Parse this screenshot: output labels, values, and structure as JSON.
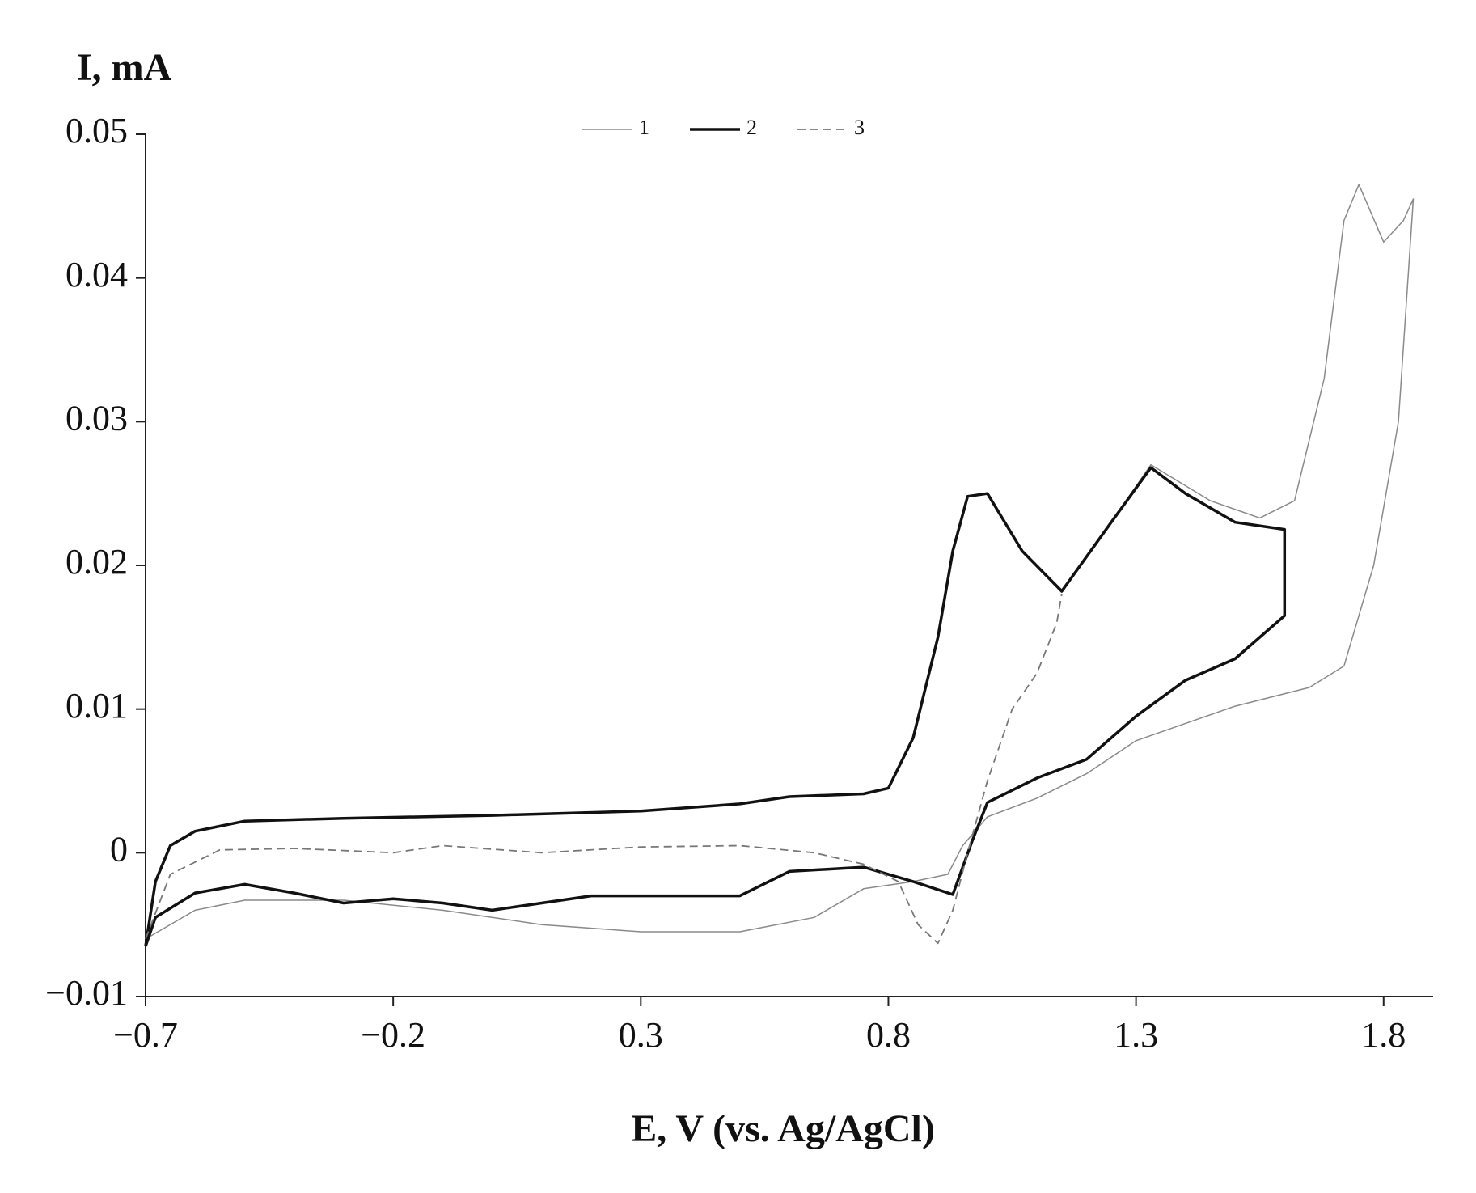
{
  "chart_data": {
    "type": "line",
    "y_label": "I, mA",
    "x_label": "E, V (vs. Ag/AgCl)",
    "xlim": [
      -0.7,
      1.9
    ],
    "ylim": [
      -0.01,
      0.05
    ],
    "xticks": [
      {
        "value": -0.7,
        "label": "−0.7"
      },
      {
        "value": -0.2,
        "label": "−0.2"
      },
      0.3,
      0.8,
      1.3,
      1.8
    ],
    "yticks": [
      {
        "value": -0.01,
        "label": "−0.01"
      },
      0,
      0.01,
      0.02,
      0.03,
      0.04,
      0.05
    ],
    "grid": false,
    "legend": "top",
    "series": [
      {
        "name": "1",
        "color": "#8a8a8a",
        "width": 1.5,
        "style": "solid",
        "x": [
          -0.7,
          -0.68,
          -0.65,
          -0.6,
          -0.5,
          -0.3,
          0,
          0.3,
          0.5,
          0.6,
          0.75,
          0.8,
          0.85,
          0.9,
          0.93,
          0.96,
          1.0,
          1.07,
          1.15,
          1.25,
          1.33,
          1.45,
          1.55,
          1.62,
          1.68,
          1.72,
          1.75,
          1.8,
          1.84,
          1.86,
          1.83,
          1.78,
          1.72,
          1.65,
          1.5,
          1.4,
          1.3,
          1.2,
          1.1,
          1.0,
          0.95,
          0.92,
          0.85,
          0.75,
          0.65,
          0.5,
          0.3,
          0.1,
          -0.1,
          -0.3,
          -0.5,
          -0.6,
          -0.7
        ],
        "values": [
          -0.0065,
          -0.002,
          0.0005,
          0.0015,
          0.0022,
          0.0024,
          0.0026,
          0.0029,
          0.0034,
          0.0039,
          0.0041,
          0.0045,
          0.008,
          0.015,
          0.021,
          0.0248,
          0.025,
          0.021,
          0.0183,
          0.023,
          0.027,
          0.0245,
          0.0233,
          0.0245,
          0.033,
          0.044,
          0.0465,
          0.0425,
          0.044,
          0.0455,
          0.03,
          0.02,
          0.013,
          0.0115,
          0.0102,
          0.009,
          0.0078,
          0.0055,
          0.0038,
          0.0025,
          0.0005,
          -0.0015,
          -0.002,
          -0.0025,
          -0.0045,
          -0.0055,
          -0.0055,
          -0.005,
          -0.004,
          -0.0033,
          -0.0033,
          -0.004,
          -0.006
        ]
      },
      {
        "name": "2",
        "color": "#111111",
        "width": 3.5,
        "style": "solid",
        "x": [
          -0.7,
          -0.68,
          -0.65,
          -0.6,
          -0.5,
          -0.3,
          0,
          0.3,
          0.5,
          0.6,
          0.75,
          0.8,
          0.85,
          0.9,
          0.93,
          0.96,
          1.0,
          1.07,
          1.15,
          1.25,
          1.33,
          1.4,
          1.5,
          1.6,
          1.6,
          1.5,
          1.4,
          1.3,
          1.2,
          1.1,
          1.0,
          0.97,
          0.93,
          0.85,
          0.75,
          0.6,
          0.5,
          0.3,
          0.2,
          0.1,
          0,
          -0.1,
          -0.2,
          -0.3,
          -0.4,
          -0.5,
          -0.6,
          -0.68,
          -0.7
        ],
        "values": [
          -0.0065,
          -0.002,
          0.0005,
          0.0015,
          0.0022,
          0.0024,
          0.0026,
          0.0029,
          0.0034,
          0.0039,
          0.0041,
          0.0045,
          0.008,
          0.015,
          0.021,
          0.0248,
          0.025,
          0.021,
          0.0182,
          0.023,
          0.0268,
          0.025,
          0.023,
          0.0225,
          0.0165,
          0.0135,
          0.012,
          0.0095,
          0.0065,
          0.0052,
          0.0035,
          0.0009,
          -0.0029,
          -0.002,
          -0.001,
          -0.0013,
          -0.003,
          -0.003,
          -0.003,
          -0.0035,
          -0.004,
          -0.0035,
          -0.0032,
          -0.0035,
          -0.0028,
          -0.0022,
          -0.0028,
          -0.0045,
          -0.0065
        ]
      },
      {
        "name": "3",
        "color": "#777777",
        "width": 1.8,
        "style": "dashed",
        "x": [
          -0.7,
          -0.65,
          -0.55,
          -0.4,
          -0.2,
          -0.1,
          0.1,
          0.3,
          0.5,
          0.65,
          0.75,
          0.82,
          0.86,
          0.9,
          0.93,
          0.96,
          1.0,
          1.05,
          1.1,
          1.14,
          1.15
        ],
        "values": [
          -0.006,
          -0.0015,
          0.0002,
          0.0003,
          0.0,
          0.0005,
          0.0,
          0.0004,
          0.0005,
          0.0,
          -0.0008,
          -0.002,
          -0.005,
          -0.0063,
          -0.004,
          0.0,
          0.005,
          0.01,
          0.0125,
          0.016,
          0.018
        ]
      }
    ]
  }
}
